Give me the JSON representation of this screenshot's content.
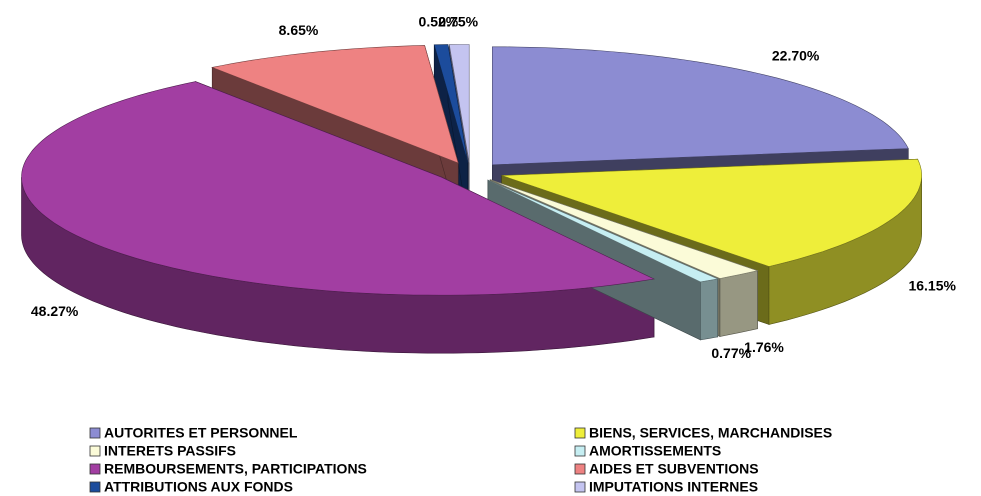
{
  "chart_data": {
    "type": "pie3d",
    "categories": [
      "AUTORITES ET PERSONNEL",
      "BIENS, SERVICES, MARCHANDISES",
      "INTERETS PASSIFS",
      "AMORTISSEMENTS",
      "REMBOURSEMENTS, PARTICIPATIONS",
      "AIDES ET SUBVENTIONS",
      "ATTRIBUTIONS AUX FONDS",
      "IMPUTATIONS INTERNES"
    ],
    "values": [
      22.7,
      16.15,
      1.76,
      0.77,
      48.27,
      8.65,
      0.52,
      0.75
    ],
    "value_labels": [
      "22.70%",
      "16.15%",
      "1.76%",
      "0.77%",
      "48.27%",
      "8.65%",
      "0.52%",
      "0.75%"
    ],
    "colors": [
      "#8c8cd2",
      "#eeee3a",
      "#fbfbd8",
      "#c6eef2",
      "#a23ea2",
      "#ee8282",
      "#1c4c9c",
      "#c4c4f0"
    ],
    "legend": "bottom"
  }
}
